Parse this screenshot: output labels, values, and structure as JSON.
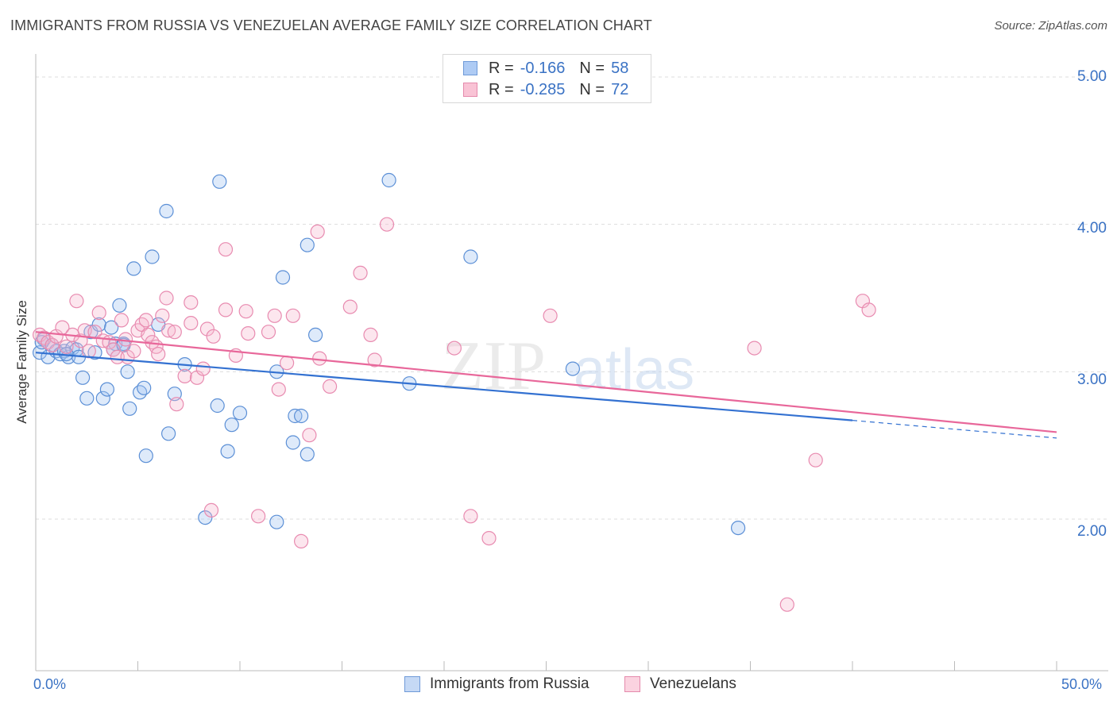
{
  "title": "IMMIGRANTS FROM RUSSIA VS VENEZUELAN AVERAGE FAMILY SIZE CORRELATION CHART",
  "source": "Source: ZipAtlas.com",
  "watermark": {
    "zip": "ZIP",
    "atlas": "atlas"
  },
  "legend_top": [
    {
      "r_key": "R =",
      "r_value": "-0.166",
      "n_key": "N =",
      "n_value": "58",
      "fill": "#aecbf4",
      "stroke": "#6f9ad8"
    },
    {
      "r_key": "R =",
      "r_value": "-0.285",
      "n_key": "N =",
      "n_value": "72",
      "fill": "#f9c3d5",
      "stroke": "#e58aac"
    }
  ],
  "legend_bottom": [
    {
      "label": "Immigrants from Russia",
      "fill": "#c5d9f5",
      "stroke": "#6f9ad8"
    },
    {
      "label": "Venezuelans",
      "fill": "#fbd3e0",
      "stroke": "#e58aac"
    }
  ],
  "colors": {
    "blue_point_fill": "rgba(160,194,240,0.35)",
    "blue_point_stroke": "#5b8fd6",
    "pink_point_fill": "rgba(247,184,206,0.35)",
    "pink_point_stroke": "#e88bb0",
    "blue_line": "#3371d1",
    "pink_line": "#e8679a",
    "grid": "#dddddd",
    "tick_text": "#3a72c4"
  },
  "chart_data": {
    "type": "scatter",
    "title": "IMMIGRANTS FROM RUSSIA VS VENEZUELAN AVERAGE FAMILY SIZE CORRELATION CHART",
    "xlabel": "",
    "ylabel": "Average Family Size",
    "xlim": [
      0,
      50
    ],
    "ylim": [
      1.0,
      5.1
    ],
    "x_tick_labels": [
      "0.0%",
      "50.0%"
    ],
    "y_ticks": [
      2.0,
      3.0,
      4.0,
      5.0
    ],
    "y_tick_labels": [
      "2.00",
      "3.00",
      "4.00",
      "5.00"
    ],
    "grid": true,
    "legend_position": "top-center",
    "series": [
      {
        "name": "Immigrants from Russia",
        "r": -0.166,
        "n": 58,
        "trend": {
          "x_start": 0,
          "y_start": 3.13,
          "x_end": 40,
          "y_end": 2.67,
          "dashed_to_x": 50,
          "dashed_to_y": 2.55
        },
        "points": [
          [
            0.2,
            3.13
          ],
          [
            0.4,
            3.22
          ],
          [
            0.6,
            3.1
          ],
          [
            0.8,
            3.18
          ],
          [
            1.0,
            3.14
          ],
          [
            1.2,
            3.12
          ],
          [
            1.4,
            3.14
          ],
          [
            1.6,
            3.1
          ],
          [
            1.8,
            3.16
          ],
          [
            2.0,
            3.15
          ],
          [
            2.1,
            3.1
          ],
          [
            2.3,
            2.96
          ],
          [
            2.5,
            2.82
          ],
          [
            2.7,
            3.27
          ],
          [
            2.9,
            3.13
          ],
          [
            3.1,
            3.32
          ],
          [
            3.3,
            2.82
          ],
          [
            3.5,
            2.88
          ],
          [
            3.7,
            3.3
          ],
          [
            3.9,
            3.19
          ],
          [
            4.1,
            3.45
          ],
          [
            4.3,
            3.19
          ],
          [
            4.5,
            3.0
          ],
          [
            4.6,
            2.75
          ],
          [
            4.8,
            3.7
          ],
          [
            5.1,
            2.86
          ],
          [
            5.3,
            2.89
          ],
          [
            5.4,
            2.43
          ],
          [
            5.7,
            3.78
          ],
          [
            6.0,
            3.32
          ],
          [
            6.4,
            4.09
          ],
          [
            6.5,
            2.58
          ],
          [
            6.8,
            2.85
          ],
          [
            7.3,
            3.05
          ],
          [
            8.3,
            2.01
          ],
          [
            8.9,
            2.77
          ],
          [
            9.0,
            4.29
          ],
          [
            9.4,
            2.46
          ],
          [
            9.6,
            2.64
          ],
          [
            10.0,
            2.72
          ],
          [
            11.8,
            3.0
          ],
          [
            11.8,
            1.98
          ],
          [
            12.1,
            3.64
          ],
          [
            12.6,
            2.52
          ],
          [
            12.7,
            2.7
          ],
          [
            13.0,
            2.7
          ],
          [
            13.3,
            2.44
          ],
          [
            13.3,
            3.86
          ],
          [
            13.7,
            3.25
          ],
          [
            17.3,
            4.3
          ],
          [
            18.3,
            2.92
          ],
          [
            21.3,
            3.78
          ],
          [
            26.3,
            3.02
          ],
          [
            34.4,
            1.94
          ],
          [
            0.3,
            3.2
          ],
          [
            1.5,
            3.12
          ],
          [
            3.8,
            3.15
          ],
          [
            4.3,
            3.18
          ]
        ]
      },
      {
        "name": "Venezuelans",
        "r": -0.285,
        "n": 72,
        "trend": {
          "x_start": 0,
          "y_start": 3.27,
          "x_end": 50,
          "y_end": 2.59
        },
        "points": [
          [
            0.2,
            3.25
          ],
          [
            0.4,
            3.23
          ],
          [
            0.6,
            3.2
          ],
          [
            0.8,
            3.18
          ],
          [
            1.0,
            3.24
          ],
          [
            1.3,
            3.3
          ],
          [
            1.5,
            3.17
          ],
          [
            1.8,
            3.25
          ],
          [
            2.0,
            3.48
          ],
          [
            2.2,
            3.21
          ],
          [
            2.4,
            3.28
          ],
          [
            2.6,
            3.14
          ],
          [
            2.9,
            3.27
          ],
          [
            3.1,
            3.4
          ],
          [
            3.3,
            3.21
          ],
          [
            3.6,
            3.2
          ],
          [
            3.8,
            3.15
          ],
          [
            4.0,
            3.1
          ],
          [
            4.2,
            3.35
          ],
          [
            4.4,
            3.22
          ],
          [
            4.5,
            3.1
          ],
          [
            4.8,
            3.14
          ],
          [
            5.0,
            3.28
          ],
          [
            5.2,
            3.32
          ],
          [
            5.4,
            3.35
          ],
          [
            5.5,
            3.25
          ],
          [
            5.7,
            3.2
          ],
          [
            5.9,
            3.17
          ],
          [
            6.0,
            3.12
          ],
          [
            6.2,
            3.38
          ],
          [
            6.4,
            3.5
          ],
          [
            6.5,
            3.28
          ],
          [
            6.8,
            3.27
          ],
          [
            6.9,
            2.78
          ],
          [
            7.3,
            2.97
          ],
          [
            7.6,
            3.33
          ],
          [
            7.6,
            3.47
          ],
          [
            7.9,
            2.96
          ],
          [
            8.2,
            3.02
          ],
          [
            8.4,
            3.29
          ],
          [
            8.6,
            2.06
          ],
          [
            8.7,
            3.24
          ],
          [
            9.3,
            3.42
          ],
          [
            9.3,
            3.83
          ],
          [
            9.8,
            3.11
          ],
          [
            10.3,
            3.41
          ],
          [
            10.4,
            3.26
          ],
          [
            10.9,
            2.02
          ],
          [
            11.4,
            3.27
          ],
          [
            11.7,
            3.38
          ],
          [
            11.9,
            2.88
          ],
          [
            12.3,
            3.06
          ],
          [
            12.6,
            3.38
          ],
          [
            13.0,
            1.85
          ],
          [
            13.4,
            2.57
          ],
          [
            13.8,
            3.95
          ],
          [
            13.9,
            3.09
          ],
          [
            14.4,
            2.9
          ],
          [
            15.4,
            3.44
          ],
          [
            15.9,
            3.67
          ],
          [
            16.4,
            3.25
          ],
          [
            16.6,
            3.08
          ],
          [
            17.2,
            4.0
          ],
          [
            20.5,
            3.16
          ],
          [
            21.3,
            2.02
          ],
          [
            22.2,
            1.87
          ],
          [
            25.2,
            3.38
          ],
          [
            35.2,
            3.16
          ],
          [
            36.8,
            1.42
          ],
          [
            38.2,
            2.4
          ],
          [
            40.5,
            3.48
          ],
          [
            40.8,
            3.42
          ]
        ]
      }
    ]
  }
}
